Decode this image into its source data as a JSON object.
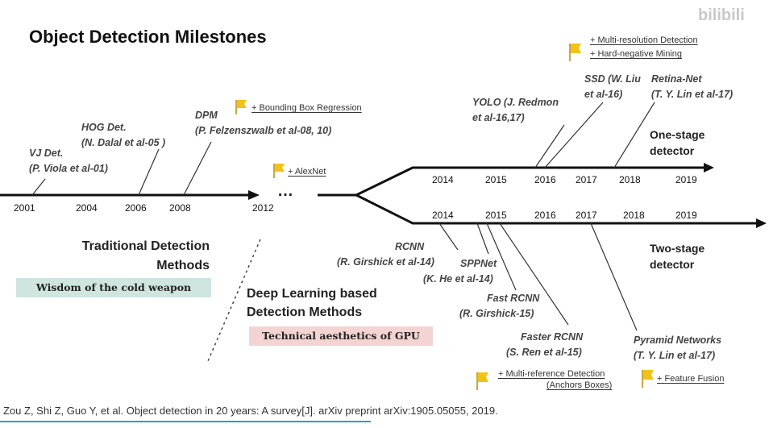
{
  "title": "Object Detection Milestones",
  "watermark": "bilibili",
  "colors": {
    "banner_green": "#cfe5df",
    "banner_red": "#f4d4d2",
    "flag": "#f2c21a",
    "line": "#111111",
    "underline": "#1aa3c9"
  },
  "traditional": {
    "heading_line1": "Traditional Detection",
    "heading_line2": "Methods",
    "banner": "Wisdom of the cold weapon",
    "years": [
      "2001",
      "2004",
      "2006",
      "2008",
      "2012"
    ],
    "ellipsis": "…",
    "vj": {
      "line1": "VJ Det.",
      "line2": "(P. Viola et al-01)"
    },
    "hog": {
      "line1": "HOG Det.",
      "line2": "(N. Dalal et al-05 )"
    },
    "dpm": {
      "line1": "DPM",
      "line2": "(P. Felzenszwalb et al-08, 10)"
    },
    "dpm_note": "+ Bounding Box Regression",
    "alexnet_note": "+ AlexNet"
  },
  "deep": {
    "heading_line1": "Deep Learning based",
    "heading_line2": "Detection Methods",
    "banner": "Technical aesthetics of GPU"
  },
  "one_stage": {
    "label_line1": "One-stage",
    "label_line2": "detector",
    "years": [
      "2014",
      "2015",
      "2016",
      "2017",
      "2018",
      "2019"
    ],
    "yolo": {
      "line1": "YOLO (J. Redmon",
      "line2": "et al-16,17)"
    },
    "ssd": {
      "line1": "SSD (W. Liu",
      "line2": "et al-16)"
    },
    "retina": {
      "line1": "Retina-Net",
      "line2": "(T. Y. Lin et al-17)"
    },
    "notes": [
      "+ Multi-resolution Detection",
      "+ Hard-negative Mining"
    ]
  },
  "two_stage": {
    "label_line1": "Two-stage",
    "label_line2": "detector",
    "years": [
      "2014",
      "2015",
      "2016",
      "2017",
      "2018",
      "2019"
    ],
    "rcnn": {
      "line1": "RCNN",
      "line2": "(R. Girshick et al-14)"
    },
    "spp": {
      "line1": "SPPNet",
      "line2": "(K. He et al-14)"
    },
    "fast": {
      "line1": "Fast RCNN",
      "line2": "(R. Girshick-15)"
    },
    "faster": {
      "line1": "Faster RCNN",
      "line2": "(S. Ren et al-15)"
    },
    "fpn": {
      "line1": "Pyramid Networks",
      "line2": "(T. Y. Lin et al-17)"
    },
    "multiref_note_line1": "+ Multi-reference Detection",
    "multiref_note_line2": "(Anchors Boxes)",
    "fusion_note": "+ Feature Fusion"
  },
  "citation": "Zou Z, Shi Z, Guo Y, et al. Object detection in 20 years: A survey[J]. arXiv preprint arXiv:1905.05055, 2019."
}
